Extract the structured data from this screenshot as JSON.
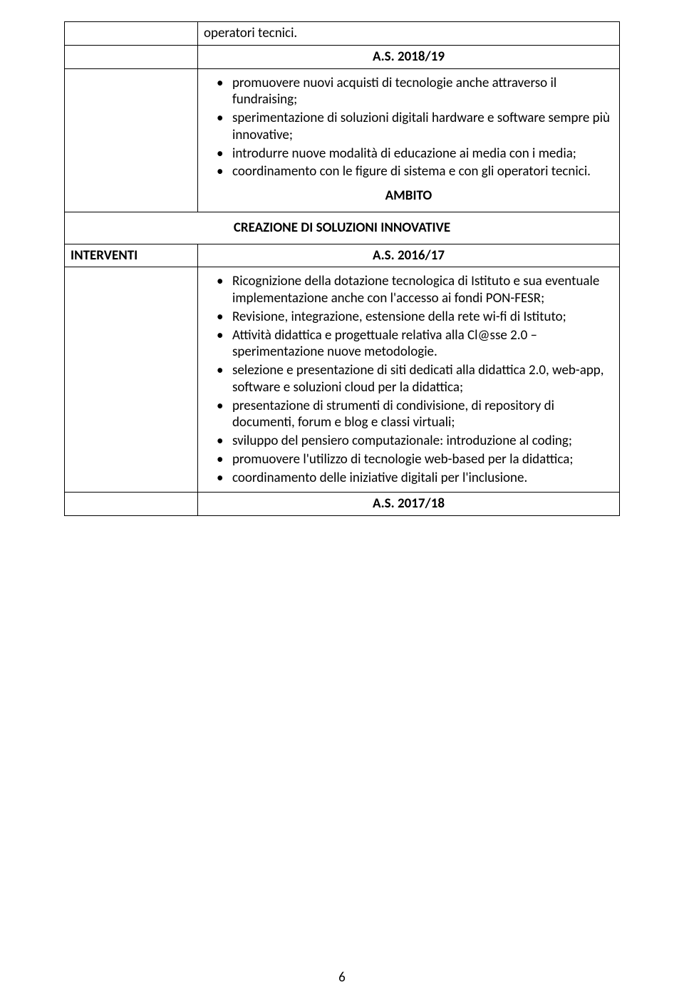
{
  "row1_right": "operatori tecnici.",
  "row2_right": "A.S. 2018/19",
  "row3_bullets": [
    "promuovere nuovi acquisti di tecnologie anche attraverso il fundraising;",
    "sperimentazione di soluzioni digitali hardware e software sempre più innovative;",
    "introdurre nuove modalità di educazione ai media con i media;",
    "coordinamento con le figure di sistema e con gli operatori tecnici."
  ],
  "ambito_label": "AMBITO",
  "creazione_label": "CREAZIONE DI SOLUZIONI INNOVATIVE",
  "interventi_label": "INTERVENTI",
  "as_2016_label": "A.S. 2016/17",
  "row5_bullets": [
    "Ricognizione della dotazione tecnologica di Istituto e sua eventuale implementazione anche con l'accesso ai fondi PON-FESR;",
    "Revisione, integrazione, estensione della rete wi-fi di Istituto;",
    "Attività didattica e progettuale relativa alla Cl@sse 2.0 – sperimentazione nuove metodologie.",
    "selezione e presentazione di siti dedicati alla didattica 2.0, web-app, software e soluzioni cloud per la didattica;",
    "presentazione di strumenti di condivisione, di repository di documenti, forum e blog e classi virtuali;",
    "sviluppo del pensiero computazionale: introduzione al coding;",
    "promuovere l'utilizzo di tecnologie web-based per la didattica;",
    "coordinamento delle iniziative digitali per l'inclusione."
  ],
  "as_2017_label": "A.S. 2017/18",
  "page_number": "6"
}
